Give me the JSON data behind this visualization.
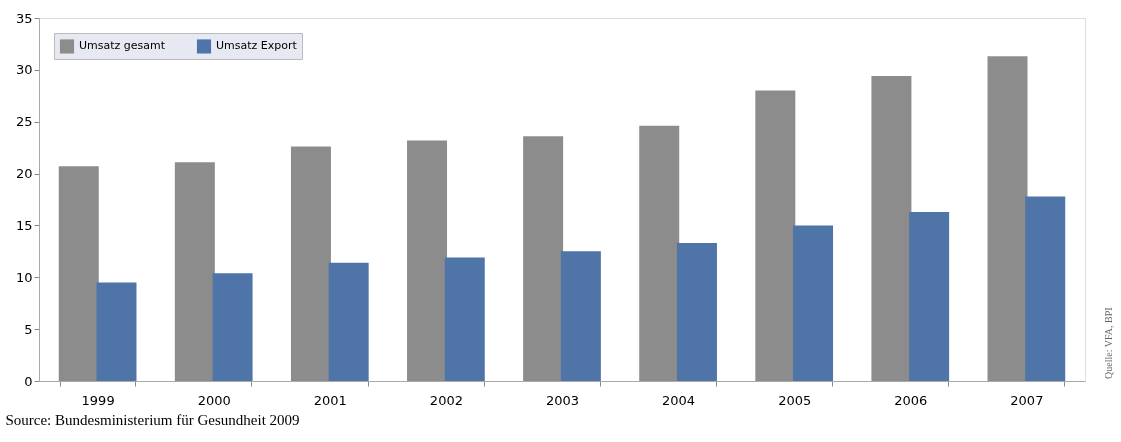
{
  "chart_data": {
    "type": "bar",
    "categories": [
      "1999",
      "2000",
      "2001",
      "2002",
      "2003",
      "2004",
      "2005",
      "2006",
      "2007"
    ],
    "series": [
      {
        "name": "Umsatz gesamt",
        "color": "#8c8c8c",
        "values": [
          20.7,
          21.1,
          22.6,
          23.2,
          23.6,
          24.6,
          28.0,
          29.4,
          31.3
        ]
      },
      {
        "name": "Umsatz Export",
        "color": "#4f75a8",
        "values": [
          9.5,
          10.4,
          11.4,
          11.9,
          12.5,
          13.3,
          15.0,
          16.3,
          17.8
        ]
      }
    ],
    "ylim": [
      0,
      35
    ],
    "yticks": [
      0,
      5,
      10,
      15,
      20,
      25,
      30,
      35
    ],
    "grid": false,
    "legend": "top left",
    "annotations": [
      "Quelle: VFA, BPI",
      "Source: Bundesministerium für Gesundheit 2009"
    ]
  }
}
